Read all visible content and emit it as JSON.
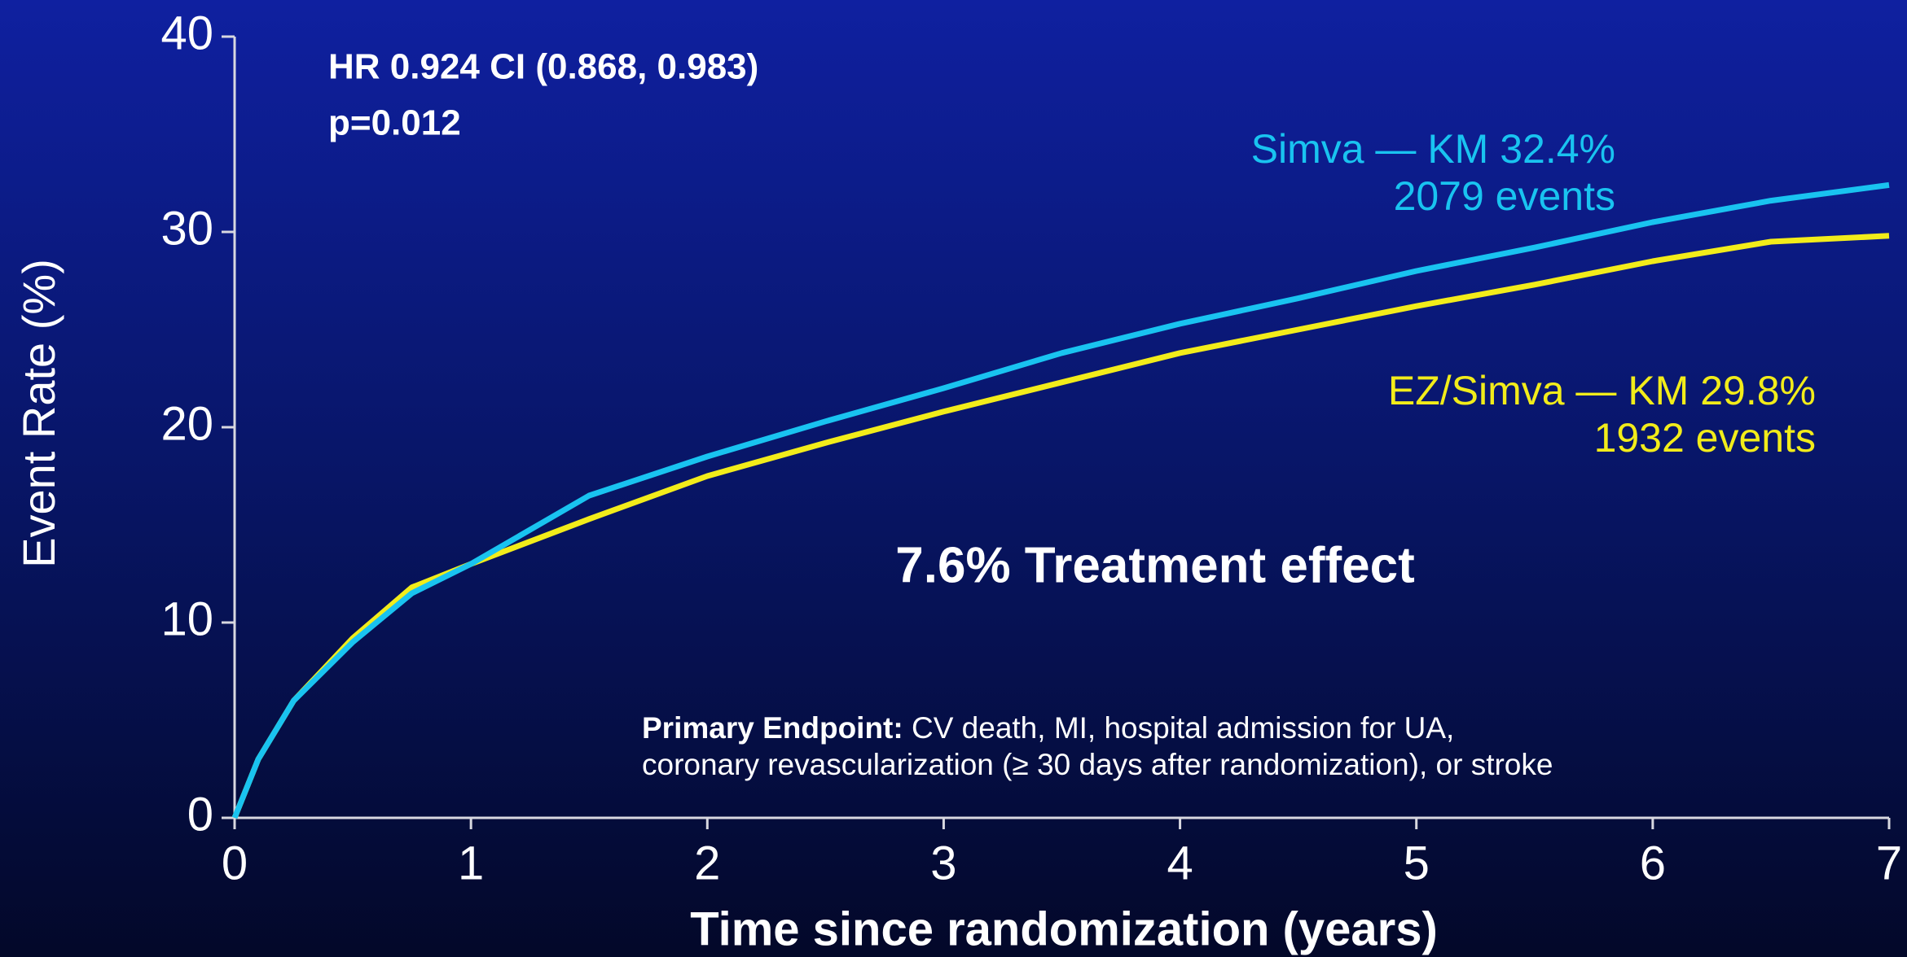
{
  "chart_data": {
    "type": "line",
    "x_label": "Time since randomization (years)",
    "y_label": "Event Rate (%)",
    "annotations": [
      "HR 0.924 CI (0.868, 0.983)",
      "p=0.012"
    ],
    "effect_label": "7.6% Treatment effect",
    "endpoint": {
      "label": "Primary Endpoint:",
      "lines": [
        "CV death, MI, hospital admission for UA,",
        "coronary revascularization (≥ 30 days after randomization), or stroke"
      ]
    },
    "x": [
      0,
      0.1,
      0.25,
      0.5,
      0.75,
      1,
      1.5,
      2,
      2.5,
      3,
      3.5,
      4,
      4.5,
      5,
      5.5,
      6,
      6.5,
      7
    ],
    "series": [
      {
        "name": "Simva — KM 32.4%",
        "events": "2079 events",
        "color": "#19c3f0",
        "values": [
          0,
          3,
          6,
          9,
          11.5,
          13,
          16.5,
          18.5,
          20.3,
          22,
          23.8,
          25.3,
          26.6,
          28,
          29.2,
          30.5,
          31.6,
          32.4
        ]
      },
      {
        "name": "EZ/Simva — KM 29.8%",
        "events": "1932 events",
        "color": "#f2ec1a",
        "values": [
          0,
          3,
          6,
          9.2,
          11.8,
          13,
          15.3,
          17.5,
          19.2,
          20.8,
          22.3,
          23.8,
          25,
          26.2,
          27.3,
          28.5,
          29.5,
          29.8
        ]
      }
    ],
    "xlim": [
      0,
      7
    ],
    "xticks": [
      0,
      1,
      2,
      3,
      4,
      5,
      6,
      7
    ],
    "ylim": [
      0,
      40
    ],
    "yticks": [
      0,
      10,
      20,
      30,
      40
    ],
    "grid": false
  }
}
